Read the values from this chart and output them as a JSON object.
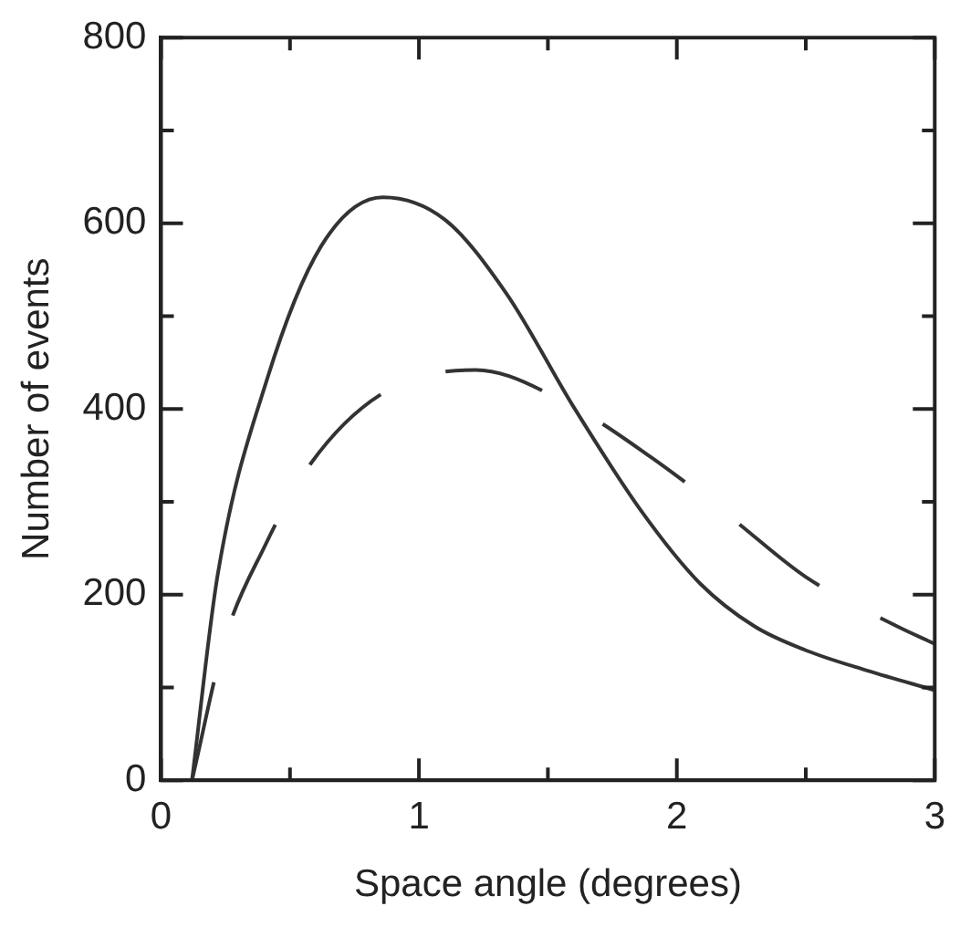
{
  "chart_data": {
    "type": "line",
    "xlabel": "Space angle (degrees)",
    "ylabel": "Number of events",
    "xlim": [
      0,
      3
    ],
    "ylim": [
      0,
      800
    ],
    "xticks": [
      0,
      {
        "value": 0.5,
        "label": null
      },
      1,
      {
        "value": 1.5,
        "label": null
      },
      2,
      {
        "value": 2.5,
        "label": null
      },
      3
    ],
    "yticks": [
      0,
      {
        "value": 100,
        "label": null
      },
      200,
      {
        "value": 300,
        "label": null
      },
      400,
      {
        "value": 500,
        "label": null
      },
      600,
      {
        "value": 700,
        "label": null
      },
      800
    ],
    "marker": "none",
    "series": [
      {
        "color": "#333333",
        "line_style": "solid",
        "x": [
          0.12,
          0.22,
          0.41,
          0.62,
          0.86,
          1.1,
          1.34,
          1.6,
          1.87,
          2.09,
          2.3,
          2.5,
          2.74,
          3.0
        ],
        "values": [
          0,
          222,
          431,
          575,
          628,
          604,
          524,
          402,
          287,
          212,
          166,
          140,
          118,
          97
        ]
      },
      {
        "color": "#333333",
        "line_style": "dashed",
        "x": [
          0.12,
          0.25,
          0.4,
          0.58,
          0.86,
          1.22,
          1.6,
          1.9,
          2.21,
          2.5,
          2.86,
          3.0
        ],
        "values": [
          0,
          154,
          251,
          341,
          417,
          442,
          402,
          348,
          283,
          219,
          165,
          147
        ]
      }
    ]
  }
}
